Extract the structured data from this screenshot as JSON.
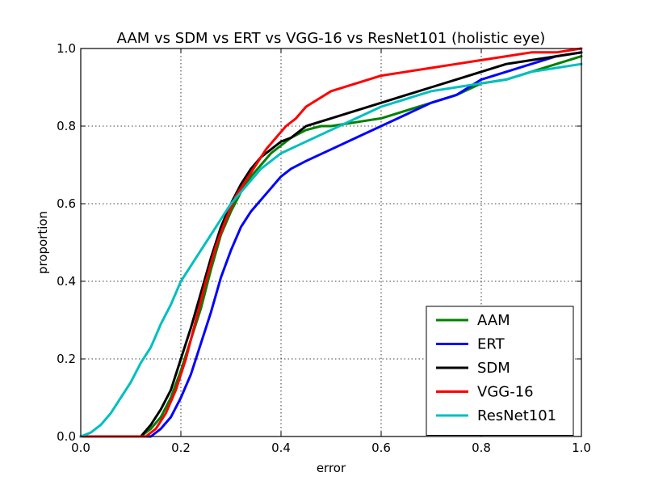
{
  "chart_data": {
    "type": "line",
    "title": "AAM vs SDM vs ERT vs VGG-16 vs ResNet101 (holistic eye)",
    "xlabel": "error",
    "ylabel": "proportion",
    "xlim": [
      0.0,
      1.0
    ],
    "ylim": [
      0.0,
      1.0
    ],
    "xticks": [
      0.0,
      0.2,
      0.4,
      0.6,
      0.8,
      1.0
    ],
    "yticks": [
      0.0,
      0.2,
      0.4,
      0.6,
      0.8,
      1.0
    ],
    "xtick_labels": [
      "0.0",
      "0.2",
      "0.4",
      "0.6",
      "0.8",
      "1.0"
    ],
    "ytick_labels": [
      "0.0",
      "0.2",
      "0.4",
      "0.6",
      "0.8",
      "1.0"
    ],
    "grid": true,
    "legend_position": "lower-right",
    "series": [
      {
        "name": "AAM",
        "color": "#008000",
        "x": [
          0.0,
          0.12,
          0.14,
          0.16,
          0.18,
          0.2,
          0.22,
          0.24,
          0.26,
          0.28,
          0.3,
          0.32,
          0.34,
          0.36,
          0.38,
          0.4,
          0.42,
          0.45,
          0.48,
          0.5,
          0.55,
          0.6,
          0.65,
          0.7,
          0.75,
          0.8,
          0.85,
          0.9,
          0.95,
          1.0
        ],
        "y": [
          0.0,
          0.0,
          0.02,
          0.05,
          0.1,
          0.17,
          0.25,
          0.33,
          0.43,
          0.52,
          0.58,
          0.63,
          0.67,
          0.7,
          0.73,
          0.75,
          0.77,
          0.79,
          0.8,
          0.8,
          0.81,
          0.82,
          0.84,
          0.86,
          0.88,
          0.91,
          0.92,
          0.94,
          0.96,
          0.98
        ]
      },
      {
        "name": "ERT",
        "color": "#0000ff",
        "x": [
          0.0,
          0.14,
          0.16,
          0.18,
          0.2,
          0.22,
          0.24,
          0.26,
          0.28,
          0.3,
          0.32,
          0.34,
          0.36,
          0.38,
          0.4,
          0.42,
          0.45,
          0.5,
          0.55,
          0.6,
          0.65,
          0.7,
          0.75,
          0.8,
          0.85,
          0.9,
          0.95,
          1.0
        ],
        "y": [
          0.0,
          0.0,
          0.02,
          0.05,
          0.1,
          0.16,
          0.24,
          0.32,
          0.41,
          0.48,
          0.54,
          0.58,
          0.61,
          0.64,
          0.67,
          0.69,
          0.71,
          0.74,
          0.77,
          0.8,
          0.83,
          0.86,
          0.88,
          0.92,
          0.94,
          0.96,
          0.98,
          0.99
        ]
      },
      {
        "name": "SDM",
        "color": "#000000",
        "x": [
          0.0,
          0.12,
          0.14,
          0.16,
          0.18,
          0.2,
          0.22,
          0.24,
          0.26,
          0.28,
          0.3,
          0.32,
          0.34,
          0.36,
          0.38,
          0.4,
          0.42,
          0.45,
          0.5,
          0.55,
          0.6,
          0.65,
          0.7,
          0.75,
          0.8,
          0.85,
          0.9,
          0.95,
          1.0
        ],
        "y": [
          0.0,
          0.0,
          0.03,
          0.07,
          0.12,
          0.2,
          0.28,
          0.37,
          0.46,
          0.54,
          0.6,
          0.65,
          0.69,
          0.72,
          0.74,
          0.76,
          0.77,
          0.8,
          0.82,
          0.84,
          0.86,
          0.88,
          0.9,
          0.92,
          0.94,
          0.96,
          0.97,
          0.98,
          0.99
        ]
      },
      {
        "name": "VGG-16",
        "color": "#ff0000",
        "x": [
          0.0,
          0.13,
          0.15,
          0.17,
          0.19,
          0.21,
          0.23,
          0.25,
          0.27,
          0.29,
          0.31,
          0.33,
          0.35,
          0.37,
          0.39,
          0.41,
          0.43,
          0.45,
          0.5,
          0.55,
          0.6,
          0.65,
          0.7,
          0.75,
          0.8,
          0.85,
          0.9,
          0.95,
          1.0
        ],
        "y": [
          0.0,
          0.0,
          0.02,
          0.06,
          0.12,
          0.2,
          0.3,
          0.4,
          0.49,
          0.56,
          0.62,
          0.66,
          0.7,
          0.74,
          0.77,
          0.8,
          0.82,
          0.85,
          0.89,
          0.91,
          0.93,
          0.94,
          0.95,
          0.96,
          0.97,
          0.98,
          0.99,
          0.99,
          1.0
        ]
      },
      {
        "name": "ResNet101",
        "color": "#00bfbf",
        "x": [
          0.0,
          0.02,
          0.04,
          0.06,
          0.08,
          0.1,
          0.12,
          0.14,
          0.16,
          0.18,
          0.2,
          0.22,
          0.24,
          0.26,
          0.28,
          0.3,
          0.32,
          0.34,
          0.36,
          0.38,
          0.4,
          0.45,
          0.5,
          0.55,
          0.6,
          0.65,
          0.7,
          0.75,
          0.8,
          0.85,
          0.9,
          0.95,
          1.0
        ],
        "y": [
          0.0,
          0.01,
          0.03,
          0.06,
          0.1,
          0.14,
          0.19,
          0.23,
          0.29,
          0.34,
          0.4,
          0.44,
          0.48,
          0.52,
          0.56,
          0.6,
          0.63,
          0.66,
          0.69,
          0.71,
          0.73,
          0.76,
          0.79,
          0.82,
          0.85,
          0.87,
          0.89,
          0.9,
          0.91,
          0.92,
          0.94,
          0.95,
          0.96
        ]
      }
    ]
  }
}
